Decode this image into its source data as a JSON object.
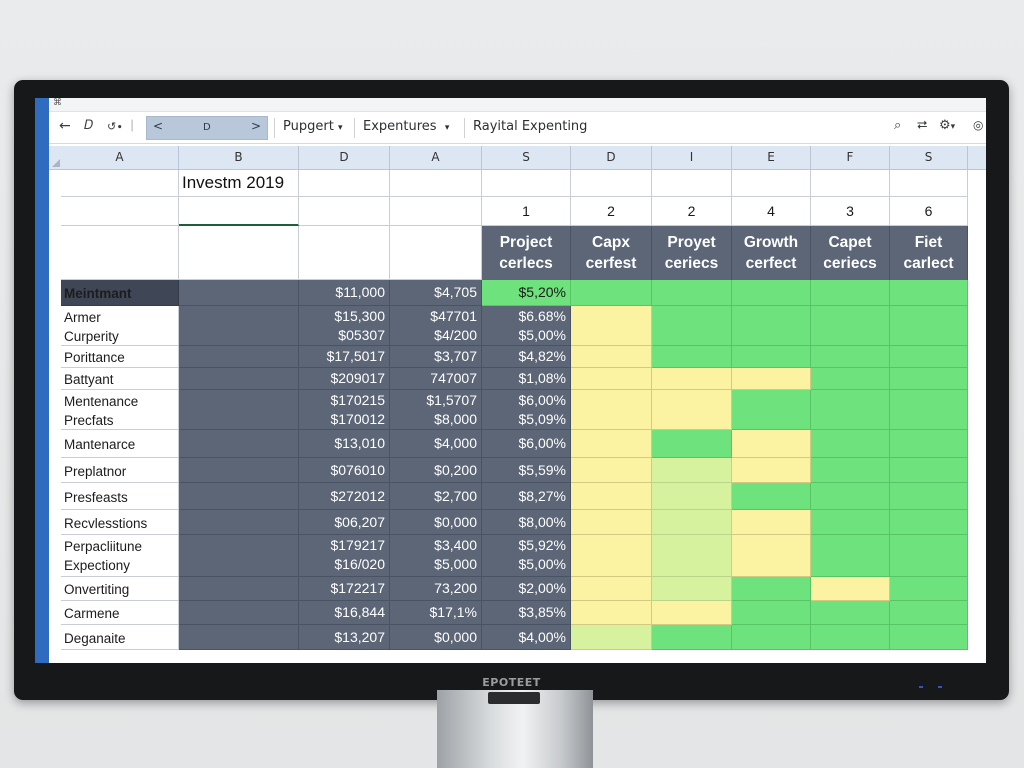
{
  "toolbar": {
    "titlebar_text": "⌘",
    "back_icon": "arrow-left-icon",
    "field_left": "<",
    "field_center": "D",
    "field_right": ">",
    "menu1": "Pupgert",
    "menu2": "Expentures",
    "menu3": "Rayital Expenting"
  },
  "columns": [
    "A",
    "B",
    "D",
    "A",
    "S",
    "D",
    "I",
    "E",
    "F",
    "S"
  ],
  "sheet": {
    "title": "Investm 2019",
    "col_numbers": [
      "1",
      "2",
      "2",
      "4",
      "3",
      "6"
    ],
    "metric_headers": [
      [
        "Project",
        "cerlecs"
      ],
      [
        "Capx",
        "cerfest"
      ],
      [
        "Proyet",
        "ceriecs"
      ],
      [
        "Growth",
        "cerfect"
      ],
      [
        "Capet",
        "ceriecs"
      ],
      [
        "Fiet",
        "carlect"
      ]
    ],
    "rows": [
      {
        "labels": [
          "Meintmant"
        ],
        "d": [
          "$11,000"
        ],
        "a": [
          "$4,705"
        ],
        "s": [
          "$5,20%"
        ]
      },
      {
        "labels": [
          "Armer",
          "Curperity"
        ],
        "d": [
          "$15,300",
          "$05307"
        ],
        "a": [
          "$47701",
          "$4/200"
        ],
        "s": [
          "$6.68%",
          "$5,00%"
        ]
      },
      {
        "labels": [
          "Porittance"
        ],
        "d": [
          "$17,5017"
        ],
        "a": [
          "$3,707"
        ],
        "s": [
          "$4,82%"
        ]
      },
      {
        "labels": [
          "Battyant"
        ],
        "d": [
          "$209017"
        ],
        "a": [
          "747007"
        ],
        "s": [
          "$1,08%"
        ]
      },
      {
        "labels": [
          "Mentenance",
          "Precfats"
        ],
        "d": [
          "$170215",
          "$170012"
        ],
        "a": [
          "$1,5707",
          "$8,000"
        ],
        "s": [
          "$6,00%",
          "$5,09%"
        ]
      },
      {
        "labels": [
          "Mantenarce"
        ],
        "d": [
          "$13,010"
        ],
        "a": [
          "$4,000"
        ],
        "s": [
          "$6,00%"
        ]
      },
      {
        "labels": [
          "Preplatnor"
        ],
        "d": [
          "$076010"
        ],
        "a": [
          "$0,200"
        ],
        "s": [
          "$5,59%"
        ]
      },
      {
        "labels": [
          "Presfeasts"
        ],
        "d": [
          "$272012"
        ],
        "a": [
          "$2,700"
        ],
        "s": [
          "$8,27%"
        ]
      },
      {
        "labels": [
          "Recvlesstions"
        ],
        "d": [
          "$06,207"
        ],
        "a": [
          "$0,000"
        ],
        "s": [
          "$8,00%"
        ]
      },
      {
        "labels": [
          "Perpacliitune",
          "Expectiony"
        ],
        "d": [
          "$179217",
          "$16/020"
        ],
        "a": [
          "$3,400",
          "$5,000"
        ],
        "s": [
          "$5,92%",
          "$5,00%"
        ]
      },
      {
        "labels": [
          "Onvertiting"
        ],
        "d": [
          "$172217"
        ],
        "a": [
          "73,200"
        ],
        "s": [
          "$2,00%"
        ]
      },
      {
        "labels": [
          "Carmene"
        ],
        "d": [
          "$16,844"
        ],
        "a": [
          "$17,1%"
        ],
        "s": [
          "$3,85%"
        ]
      },
      {
        "labels": [
          "Deganaite"
        ],
        "d": [
          "$13,207"
        ],
        "a": [
          "$0,000"
        ],
        "s": [
          "$4,00%"
        ]
      }
    ]
  },
  "monitor": {
    "brand": "EPOTEET"
  },
  "colors": {
    "dark_cell": "#5c6677",
    "green_cell": "#6ee27c",
    "yellow_cell": "#fbf3a2",
    "header_blue": "#dde7f3"
  }
}
